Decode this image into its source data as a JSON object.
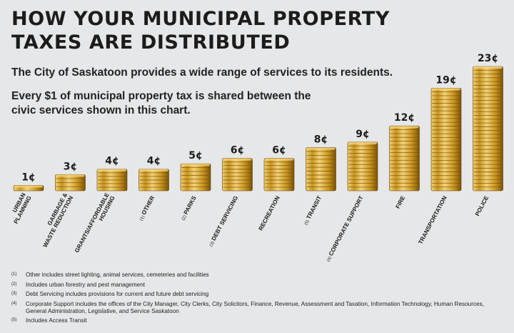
{
  "header": {
    "title_line1": "HOW YOUR MUNICIPAL PROPERTY",
    "title_line2": "TAXES ARE DISTRIBUTED",
    "subtitle": "The City of Saskatoon provides a wide range of services to its residents.",
    "body_line1": "Every $1 of municipal property tax is shared between the",
    "body_line2": "civic services shown in this chart."
  },
  "chart_data": {
    "type": "bar",
    "title": "HOW YOUR MUNICIPAL PROPERTY TAXES ARE DISTRIBUTED",
    "unit": "¢",
    "ylim": [
      0,
      23
    ],
    "grid": false,
    "categories": [
      {
        "label": [
          "URBAN",
          "PLANNING"
        ],
        "note": ""
      },
      {
        "label": [
          "GARBAGE &",
          "WASTE REDUCTION"
        ],
        "note": ""
      },
      {
        "label": [
          "GRANTS/AFFORDABLE",
          "HOUSING"
        ],
        "note": ""
      },
      {
        "label": [
          "OTHER"
        ],
        "note": "(1)"
      },
      {
        "label": [
          "PARKS"
        ],
        "note": "(2)"
      },
      {
        "label": [
          "DEBT SERVICING"
        ],
        "note": "(3)"
      },
      {
        "label": [
          "RECREATION"
        ],
        "note": ""
      },
      {
        "label": [
          "TRANSIT"
        ],
        "note": "(5)"
      },
      {
        "label": [
          "CORPORATE SUPPORT"
        ],
        "note": "(4)"
      },
      {
        "label": [
          "FIRE"
        ],
        "note": ""
      },
      {
        "label": [
          "TRANSPORTATION"
        ],
        "note": ""
      },
      {
        "label": [
          "POLICE"
        ],
        "note": ""
      }
    ],
    "values": [
      1,
      3,
      4,
      4,
      5,
      6,
      6,
      8,
      9,
      12,
      19,
      23
    ],
    "value_labels": [
      "1¢",
      "3¢",
      "4¢",
      "4¢",
      "5¢",
      "6¢",
      "6¢",
      "8¢",
      "9¢",
      "12¢",
      "19¢",
      "23¢"
    ],
    "colors": {
      "coin_light": "#f3d27a",
      "coin_mid": "#c9961f",
      "coin_dark": "#7a5208",
      "coin_edge": "#5e3d05"
    }
  },
  "footnotes": [
    {
      "num": "(1)",
      "text": "Other includes street lighting, animal services, cemeteries and facilities"
    },
    {
      "num": "(2)",
      "text": "Includes urban forestry and pest management"
    },
    {
      "num": "(3)",
      "text": "Debt Servicing includes provisions for current and future debt servicing"
    },
    {
      "num": "(4)",
      "text": "Corporate Support includes the offices of the City Manager, City Clerks, City Solicitors, Finance, Revenue, Assessment and Taxation, Information Technology, Human Resources, General Administration, Legislative, and Service Saskatoon"
    },
    {
      "num": "(5)",
      "text": "Includes Access Transit"
    }
  ]
}
